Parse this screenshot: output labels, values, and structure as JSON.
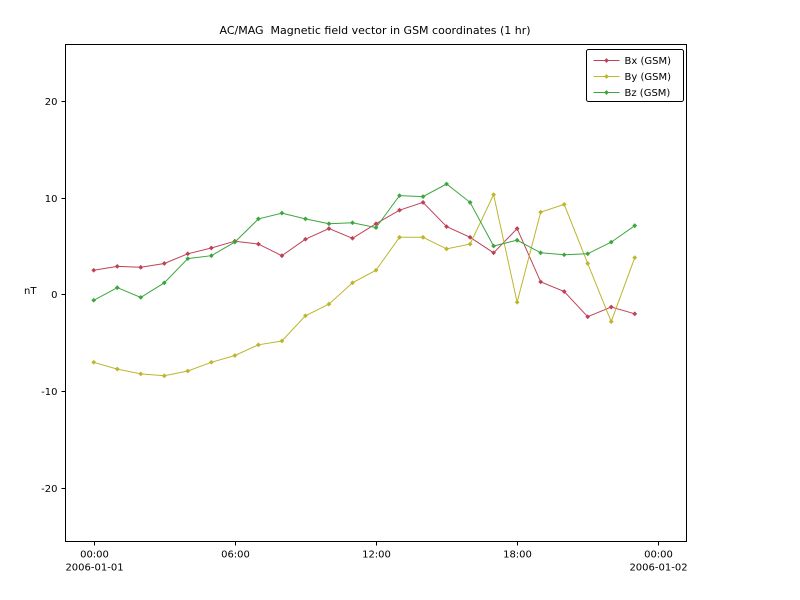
{
  "chart_data": {
    "type": "line",
    "title": "AC/MAG  Magnetic field vector in GSM coordinates (1 hr)",
    "ylabel": "nT",
    "xlabel": "",
    "x_hours": [
      0,
      1,
      2,
      3,
      4,
      5,
      6,
      7,
      8,
      9,
      10,
      11,
      12,
      13,
      14,
      15,
      16,
      17,
      18,
      19,
      20,
      21,
      22,
      23
    ],
    "series": [
      {
        "name": "Bx (GSM)",
        "color": "#bf4156",
        "values": [
          2.5,
          2.9,
          2.8,
          3.2,
          4.2,
          4.8,
          5.5,
          5.2,
          4.0,
          5.7,
          6.8,
          5.8,
          7.3,
          8.7,
          9.5,
          7.0,
          5.9,
          4.3,
          6.8,
          1.3,
          0.3,
          -2.3,
          -1.3,
          -2.0
        ]
      },
      {
        "name": "By (GSM)",
        "color": "#bdb52c",
        "values": [
          -7.0,
          -7.7,
          -8.2,
          -8.4,
          -7.9,
          -7.0,
          -6.3,
          -5.2,
          -4.8,
          -2.2,
          -1.0,
          1.2,
          2.5,
          5.9,
          5.9,
          4.7,
          5.2,
          10.3,
          -0.8,
          8.5,
          9.3,
          3.2,
          -2.8,
          3.8
        ]
      },
      {
        "name": "Bz (GSM)",
        "color": "#3ca63c",
        "values": [
          -0.6,
          0.7,
          -0.3,
          1.2,
          3.7,
          4.0,
          5.4,
          7.8,
          8.4,
          7.8,
          7.3,
          7.4,
          6.9,
          10.2,
          10.1,
          11.4,
          9.5,
          5.0,
          5.6,
          4.3,
          4.1,
          4.2,
          5.4,
          7.1
        ]
      }
    ],
    "xlim": [
      -1.2,
      25.2
    ],
    "ylim": [
      -25.5,
      25.8
    ],
    "yticks": [
      -20,
      -10,
      0,
      10,
      20
    ],
    "xticks": [
      {
        "hour": 0,
        "label": "00:00",
        "date": "2006-01-01"
      },
      {
        "hour": 6,
        "label": "06:00"
      },
      {
        "hour": 12,
        "label": "12:00"
      },
      {
        "hour": 18,
        "label": "18:00"
      },
      {
        "hour": 24,
        "label": "00:00",
        "date": "2006-01-02"
      }
    ],
    "legend": {
      "position": "upper right",
      "entries": [
        "Bx (GSM)",
        "By (GSM)",
        "Bz (GSM)"
      ]
    },
    "grid": false,
    "marker": "diamond",
    "axis_color": "#000000",
    "background": "#ffffff"
  }
}
